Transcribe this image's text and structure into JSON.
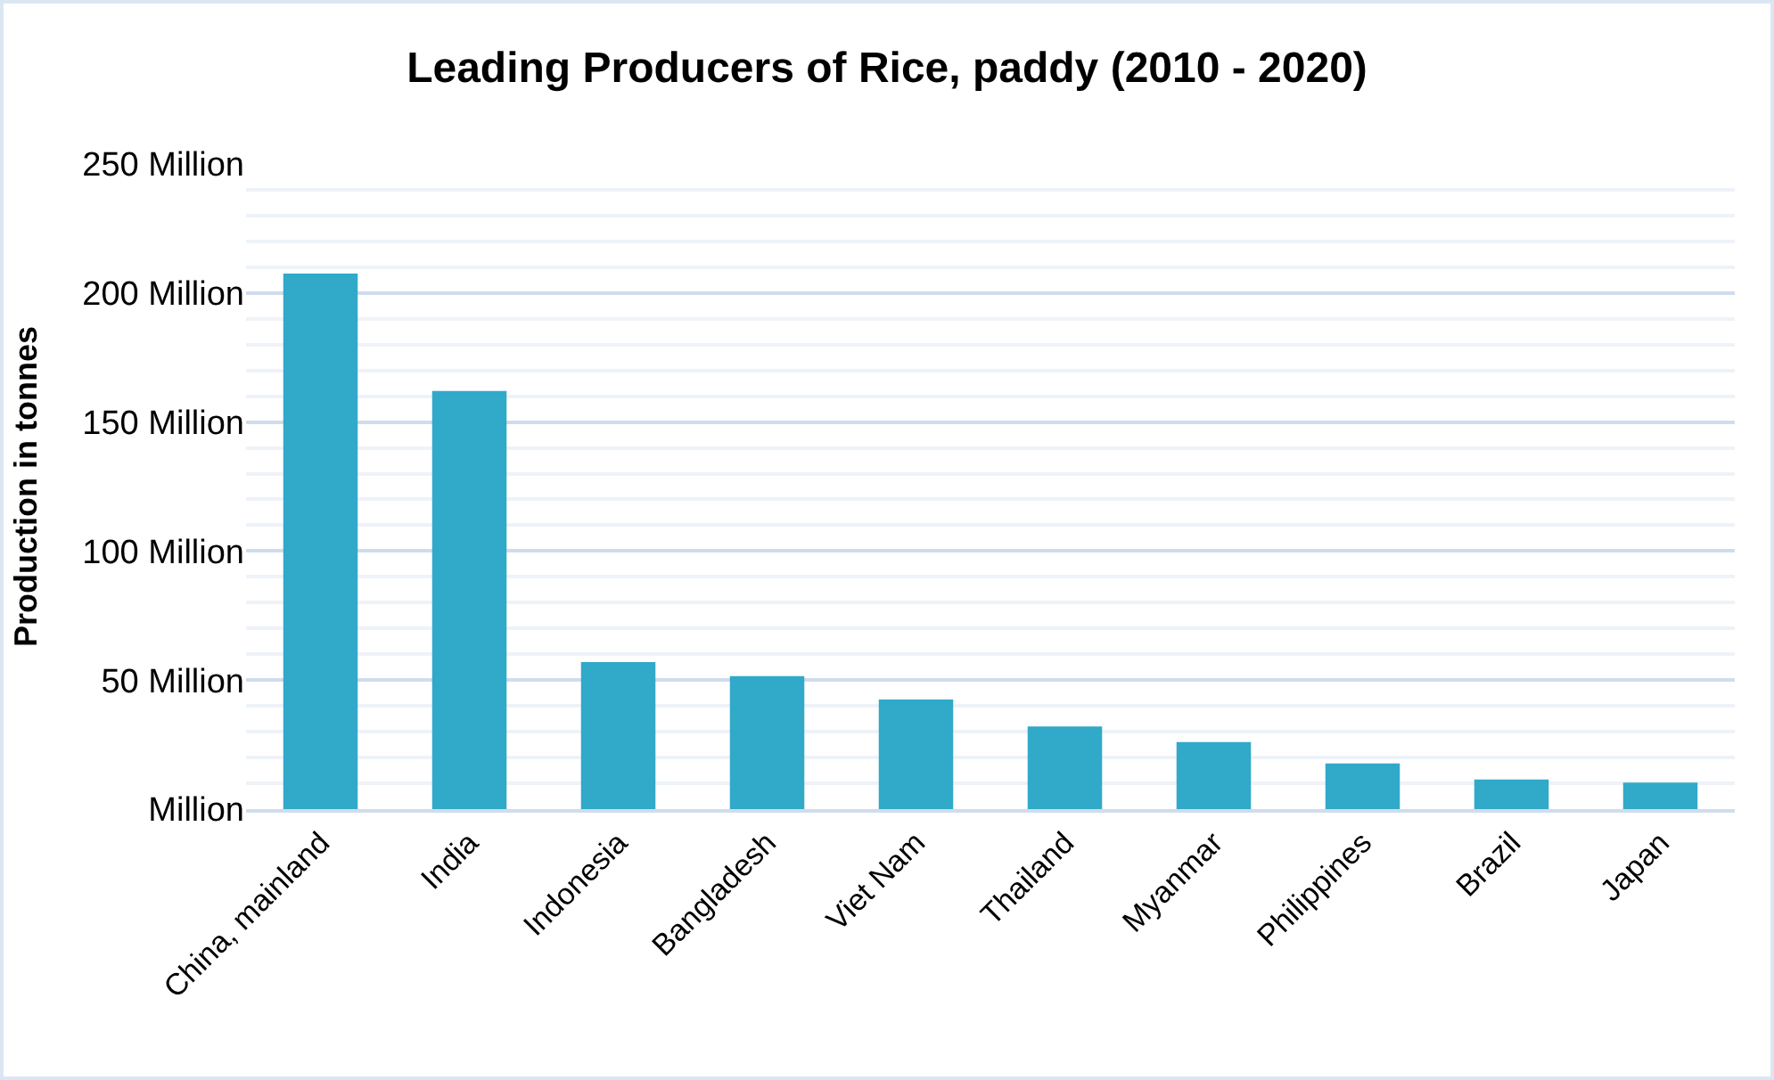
{
  "chart_data": {
    "type": "bar",
    "title": "Leading Producers of Rice, paddy (2010 - 2020)",
    "ylabel": "Production in tonnes",
    "categories": [
      "China, mainland",
      "India",
      "Indonesia",
      "Bangladesh",
      "Viet Nam",
      "Thailand",
      "Myanmar",
      "Philippines",
      "Brazil",
      "Japan"
    ],
    "values": [
      207.5,
      162,
      57,
      51.5,
      42.5,
      32,
      26,
      17.7,
      11.5,
      10.3
    ],
    "color": "#31a9c9",
    "ylim": [
      0,
      250
    ],
    "yticks": [
      {
        "value": 0,
        "label": "Million"
      },
      {
        "value": 50,
        "label": "50 Million"
      },
      {
        "value": 100,
        "label": "100 Million"
      },
      {
        "value": 150,
        "label": "150 Million"
      },
      {
        "value": 200,
        "label": "200 Million"
      },
      {
        "value": 250,
        "label": "250 Million"
      }
    ],
    "grid": true
  }
}
